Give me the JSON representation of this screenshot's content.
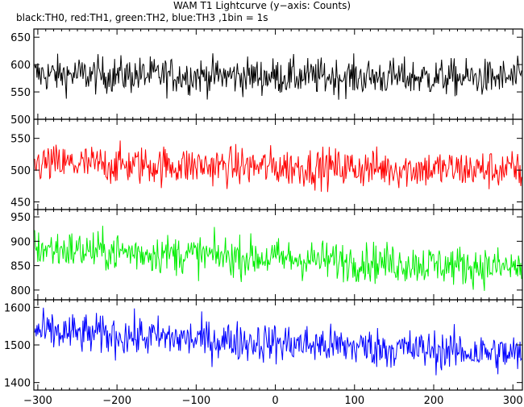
{
  "header": {
    "title": "WAM T1 Lightcurve (y−axis: Counts)",
    "subtitle": "black:TH0, red:TH1, green:TH2, blue:TH3 ,1bin = 1s"
  },
  "chart_data": {
    "type": "line",
    "title": "WAM T1 Lightcurve (y−axis: Counts)",
    "subtitle": "black:TH0, red:TH1, green:TH2, blue:TH3 ,1bin = 1s",
    "ylabel": "Counts",
    "xlim": [
      -305,
      312
    ],
    "x_ticks": [
      -300,
      -200,
      -100,
      0,
      100,
      200,
      300
    ],
    "x_tick_labels": [
      "−300",
      "−200",
      "−100",
      "0",
      "100",
      "200",
      "300"
    ],
    "bin_seconds": 1,
    "series": [
      {
        "name": "TH0",
        "color": "#000000",
        "ylim": [
          500,
          665
        ],
        "y_ticks": [
          500,
          550,
          600,
          650
        ],
        "y_tick_labels": [
          "500",
          "550",
          "600",
          "650"
        ],
        "mean_start": 582,
        "mean_end": 575,
        "noise_amplitude": 24
      },
      {
        "name": "TH1",
        "color": "#ff0000",
        "ylim": [
          438,
          580
        ],
        "y_ticks": [
          450,
          500,
          550
        ],
        "y_tick_labels": [
          "450",
          "500",
          "550"
        ],
        "mean_start": 510,
        "mean_end": 500,
        "noise_amplitude": 22
      },
      {
        "name": "TH2",
        "color": "#00ee00",
        "ylim": [
          780,
          965
        ],
        "y_ticks": [
          800,
          850,
          900,
          950
        ],
        "y_tick_labels": [
          "800",
          "850",
          "900",
          "950"
        ],
        "mean_start": 885,
        "mean_end": 845,
        "noise_amplitude": 29
      },
      {
        "name": "TH3",
        "color": "#0000ff",
        "ylim": [
          1380,
          1620
        ],
        "y_ticks": [
          1400,
          1500,
          1600
        ],
        "y_tick_labels": [
          "1400",
          "1500",
          "1600"
        ],
        "mean_start": 1535,
        "mean_end": 1475,
        "noise_amplitude": 38
      }
    ]
  }
}
